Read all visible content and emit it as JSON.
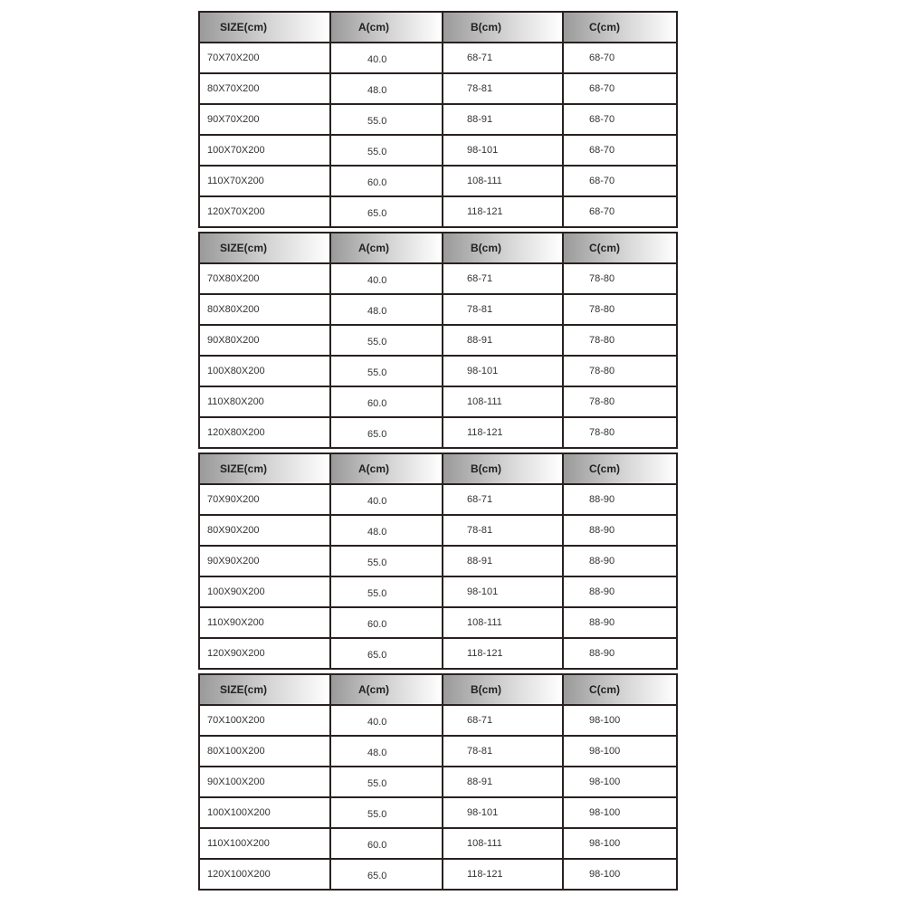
{
  "headers": [
    "SIZE(cm)",
    "A(cm)",
    "B(cm)",
    "C(cm)"
  ],
  "header_gradient": [
    "#9a9a9a",
    "#ffffff"
  ],
  "tables": [
    {
      "rows": [
        [
          "70X70X200",
          "40.0",
          "68-71",
          "68-70"
        ],
        [
          "80X70X200",
          "48.0",
          "78-81",
          "68-70"
        ],
        [
          "90X70X200",
          "55.0",
          "88-91",
          "68-70"
        ],
        [
          "100X70X200",
          "55.0",
          "98-101",
          "68-70"
        ],
        [
          "110X70X200",
          "60.0",
          "108-111",
          "68-70"
        ],
        [
          "120X70X200",
          "65.0",
          "118-121",
          "68-70"
        ]
      ]
    },
    {
      "rows": [
        [
          "70X80X200",
          "40.0",
          "68-71",
          "78-80"
        ],
        [
          "80X80X200",
          "48.0",
          "78-81",
          "78-80"
        ],
        [
          "90X80X200",
          "55.0",
          "88-91",
          "78-80"
        ],
        [
          "100X80X200",
          "55.0",
          "98-101",
          "78-80"
        ],
        [
          "110X80X200",
          "60.0",
          "108-111",
          "78-80"
        ],
        [
          "120X80X200",
          "65.0",
          "118-121",
          "78-80"
        ]
      ]
    },
    {
      "rows": [
        [
          "70X90X200",
          "40.0",
          "68-71",
          "88-90"
        ],
        [
          "80X90X200",
          "48.0",
          "78-81",
          "88-90"
        ],
        [
          "90X90X200",
          "55.0",
          "88-91",
          "88-90"
        ],
        [
          "100X90X200",
          "55.0",
          "98-101",
          "88-90"
        ],
        [
          "110X90X200",
          "60.0",
          "108-111",
          "88-90"
        ],
        [
          "120X90X200",
          "65.0",
          "118-121",
          "88-90"
        ]
      ]
    },
    {
      "rows": [
        [
          "70X100X200",
          "40.0",
          "68-71",
          "98-100"
        ],
        [
          "80X100X200",
          "48.0",
          "78-81",
          "98-100"
        ],
        [
          "90X100X200",
          "55.0",
          "88-91",
          "98-100"
        ],
        [
          "100X100X200",
          "55.0",
          "98-101",
          "98-100"
        ],
        [
          "110X100X200",
          "60.0",
          "108-111",
          "98-100"
        ],
        [
          "120X100X200",
          "65.0",
          "118-121",
          "98-100"
        ]
      ]
    }
  ]
}
